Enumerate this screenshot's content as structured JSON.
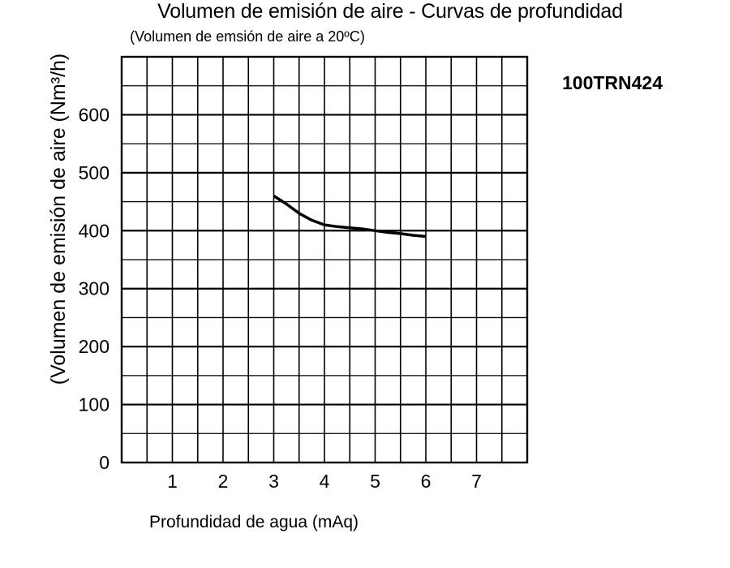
{
  "chart_data": {
    "type": "line",
    "title": "Volumen de emisión de aire - Curvas de profundidad",
    "subtitle": "(Volumen de emsión de aire a 20ºC)",
    "xlabel": "Profundidad de agua (mAq)",
    "ylabel": "(Volumen de emisión de aire (Nm³/h)",
    "model_label": "100TRN424",
    "xlim": [
      0,
      8
    ],
    "ylim": [
      0,
      700
    ],
    "x_ticks": [
      1,
      2,
      3,
      4,
      5,
      6,
      7
    ],
    "y_ticks": [
      0,
      100,
      200,
      300,
      400,
      500,
      600
    ],
    "grid": true,
    "series": [
      {
        "x": [
          3.0,
          3.25,
          3.5,
          3.75,
          4.0,
          4.25,
          4.5,
          4.75,
          5.0,
          5.25,
          5.5,
          5.75,
          6.0
        ],
        "y": [
          460,
          446,
          430,
          418,
          410,
          407,
          405,
          403,
          400,
          397,
          395,
          392,
          390
        ]
      }
    ]
  }
}
